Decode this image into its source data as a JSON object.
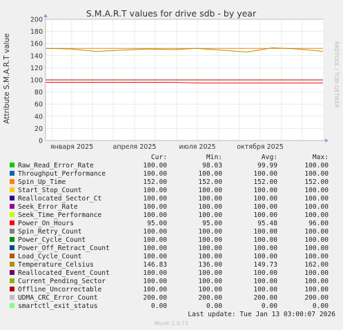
{
  "chart_data": {
    "type": "line",
    "title": "S.M.A.R.T values for drive sdb - by year",
    "ylabel": "Attribute S.M.A.R.T value",
    "ylim": [
      0,
      200
    ],
    "yticks": [
      "0",
      "20",
      "40",
      "60",
      "80",
      "100",
      "120",
      "140",
      "160",
      "180",
      "200"
    ],
    "grid": true,
    "x_tick_labels": [
      "января 2025",
      "апреля 2025",
      "июля 2025",
      "октября 2025"
    ],
    "side_label": "RRDTOOL / TOBI OETIKER",
    "legend_position": "bottom",
    "columns": [
      "Cur:",
      "Min:",
      "Avg:",
      "Max:"
    ],
    "series": [
      {
        "name": "Raw_Read_Error_Rate",
        "color": "#00cc00",
        "cur": "100.00",
        "min": "98.03",
        "avg": "99.99",
        "max": "100.00",
        "values": [
          100,
          100,
          100,
          100,
          100,
          100,
          100,
          100,
          100,
          100,
          100,
          100
        ]
      },
      {
        "name": "Throughput_Performance",
        "color": "#0066b3",
        "cur": "100.00",
        "min": "100.00",
        "avg": "100.00",
        "max": "100.00",
        "values": [
          100,
          100,
          100,
          100,
          100,
          100,
          100,
          100,
          100,
          100,
          100,
          100
        ]
      },
      {
        "name": "Spin_Up_Time",
        "color": "#ff8000",
        "cur": "152.00",
        "min": "152.00",
        "avg": "152.00",
        "max": "152.00",
        "values": [
          152,
          152,
          152,
          152,
          152,
          152,
          152,
          152,
          152,
          152,
          152,
          152
        ]
      },
      {
        "name": "Start_Stop_Count",
        "color": "#ffcc00",
        "cur": "100.00",
        "min": "100.00",
        "avg": "100.00",
        "max": "100.00",
        "values": [
          100,
          100,
          100,
          100,
          100,
          100,
          100,
          100,
          100,
          100,
          100,
          100
        ]
      },
      {
        "name": "Reallocated_Sector_Ct",
        "color": "#330099",
        "cur": "100.00",
        "min": "100.00",
        "avg": "100.00",
        "max": "100.00",
        "values": [
          100,
          100,
          100,
          100,
          100,
          100,
          100,
          100,
          100,
          100,
          100,
          100
        ]
      },
      {
        "name": "Seek_Error_Rate",
        "color": "#990099",
        "cur": "100.00",
        "min": "100.00",
        "avg": "100.00",
        "max": "100.00",
        "values": [
          100,
          100,
          100,
          100,
          100,
          100,
          100,
          100,
          100,
          100,
          100,
          100
        ]
      },
      {
        "name": "Seek_Time_Performance",
        "color": "#ccff00",
        "cur": "100.00",
        "min": "100.00",
        "avg": "100.00",
        "max": "100.00",
        "values": [
          100,
          100,
          100,
          100,
          100,
          100,
          100,
          100,
          100,
          100,
          100,
          100
        ]
      },
      {
        "name": "Power_On_Hours",
        "color": "#ff0000",
        "cur": "95.00",
        "min": "95.00",
        "avg": "95.48",
        "max": "96.00",
        "values": [
          96,
          96,
          96,
          96,
          96,
          96,
          95,
          95,
          95,
          95,
          95,
          95
        ]
      },
      {
        "name": "Spin_Retry_Count",
        "color": "#808080",
        "cur": "100.00",
        "min": "100.00",
        "avg": "100.00",
        "max": "100.00",
        "values": [
          100,
          100,
          100,
          100,
          100,
          100,
          100,
          100,
          100,
          100,
          100,
          100
        ]
      },
      {
        "name": "Power_Cycle_Count",
        "color": "#008f00",
        "cur": "100.00",
        "min": "100.00",
        "avg": "100.00",
        "max": "100.00",
        "values": [
          100,
          100,
          100,
          100,
          100,
          100,
          100,
          100,
          100,
          100,
          100,
          100
        ]
      },
      {
        "name": "Power_Off_Retract_Count",
        "color": "#00487d",
        "cur": "100.00",
        "min": "100.00",
        "avg": "100.00",
        "max": "100.00",
        "values": [
          100,
          100,
          100,
          100,
          100,
          100,
          100,
          100,
          100,
          100,
          100,
          100
        ]
      },
      {
        "name": "Load_Cycle_Count",
        "color": "#b35a00",
        "cur": "100.00",
        "min": "100.00",
        "avg": "100.00",
        "max": "100.00",
        "values": [
          100,
          100,
          100,
          100,
          100,
          100,
          100,
          100,
          100,
          100,
          100,
          100
        ]
      },
      {
        "name": "Temperature_Celsius",
        "color": "#b38f00",
        "cur": "146.83",
        "min": "136.00",
        "avg": "149.73",
        "max": "162.00",
        "values": [
          152,
          151,
          147,
          149,
          151,
          150,
          152,
          149,
          146,
          153,
          151,
          147
        ]
      },
      {
        "name": "Reallocated_Event_Count",
        "color": "#6b006b",
        "cur": "100.00",
        "min": "100.00",
        "avg": "100.00",
        "max": "100.00",
        "values": [
          100,
          100,
          100,
          100,
          100,
          100,
          100,
          100,
          100,
          100,
          100,
          100
        ]
      },
      {
        "name": "Current_Pending_Sector",
        "color": "#8fb300",
        "cur": "100.00",
        "min": "100.00",
        "avg": "100.00",
        "max": "100.00",
        "values": [
          100,
          100,
          100,
          100,
          100,
          100,
          100,
          100,
          100,
          100,
          100,
          100
        ]
      },
      {
        "name": "Offline_Uncorrectable",
        "color": "#b30000",
        "cur": "100.00",
        "min": "100.00",
        "avg": "100.00",
        "max": "100.00",
        "values": [
          100,
          100,
          100,
          100,
          100,
          100,
          100,
          100,
          100,
          100,
          100,
          100
        ]
      },
      {
        "name": "UDMA_CRC_Error_Count",
        "color": "#bebebe",
        "cur": "200.00",
        "min": "200.00",
        "avg": "200.00",
        "max": "200.00",
        "values": [
          200,
          200,
          200,
          200,
          200,
          200,
          200,
          200,
          200,
          200,
          200,
          200
        ]
      },
      {
        "name": "smartctl_exit_status",
        "color": "#80ff80",
        "cur": "0.00",
        "min": "0.00",
        "avg": "0.00",
        "max": "0.00",
        "values": [
          0,
          0,
          0,
          0,
          0,
          0,
          0,
          0,
          0,
          0,
          0,
          0
        ]
      }
    ],
    "last_update": "Last update: Tue Jan 13 03:00:07 2026",
    "footer": "Munin 2.0.73"
  }
}
